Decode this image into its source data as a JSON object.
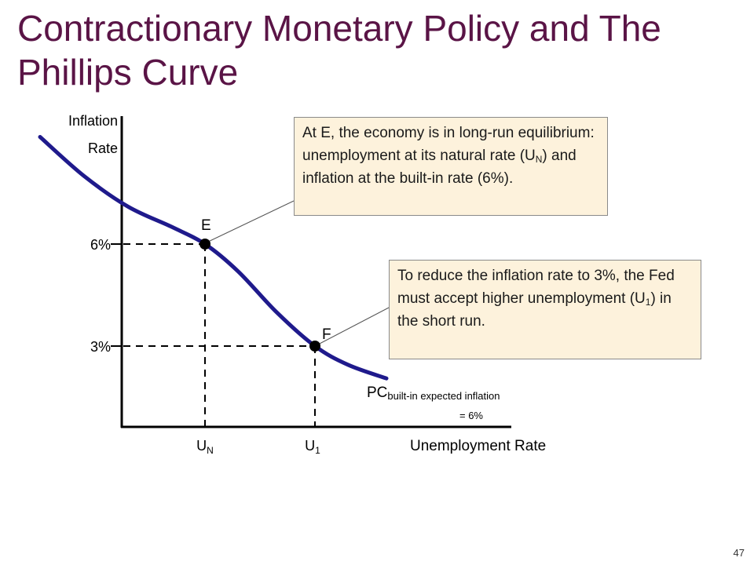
{
  "title_line1": "Contractionary Monetary Policy and The",
  "title_line2": "Phillips Curve",
  "page_number": "47",
  "callouts": {
    "e": {
      "parts": [
        "At E, the economy is in long-run equilibrium: unemployment at its natural rate (U",
        "N",
        ") and inflation at the built-in rate (6%)."
      ]
    },
    "f": {
      "parts": [
        "To reduce the inflation rate to 3%, the Fed must accept higher unemployment (U",
        "1",
        ") in the short run."
      ]
    }
  },
  "colors": {
    "curve": "#1f1a8c",
    "title": "#5a1446",
    "callout_bg": "#fdf2dc"
  },
  "chart_data": {
    "type": "line",
    "ylabel_line1": "Inflation",
    "ylabel_line2": "Rate",
    "xlabel": "Unemployment Rate",
    "y_ticks": [
      {
        "label": "6%",
        "value": 6
      },
      {
        "label": "3%",
        "value": 3
      }
    ],
    "x_ticks": [
      {
        "label": "U",
        "sub": "N",
        "value": 1
      },
      {
        "label": "U",
        "sub": "1",
        "value": 2
      }
    ],
    "curve_label": {
      "main": "PC",
      "sub": "built-in expected inflation",
      "sub_line2": "= 6%"
    },
    "points": [
      {
        "name": "E",
        "x": 1,
        "y": 6
      },
      {
        "name": "F",
        "x": 2,
        "y": 3
      }
    ],
    "curve": [
      {
        "x": -0.5,
        "y": 9.15
      },
      {
        "x": -0.1,
        "y": 8.0
      },
      {
        "x": 0.3,
        "y": 7.1
      },
      {
        "x": 0.7,
        "y": 6.5
      },
      {
        "x": 1,
        "y": 6
      },
      {
        "x": 1.3,
        "y": 5.2
      },
      {
        "x": 1.65,
        "y": 4.0
      },
      {
        "x": 2,
        "y": 3
      },
      {
        "x": 2.3,
        "y": 2.45
      },
      {
        "x": 2.65,
        "y": 2.05
      }
    ],
    "grid": false,
    "legend": "none"
  }
}
